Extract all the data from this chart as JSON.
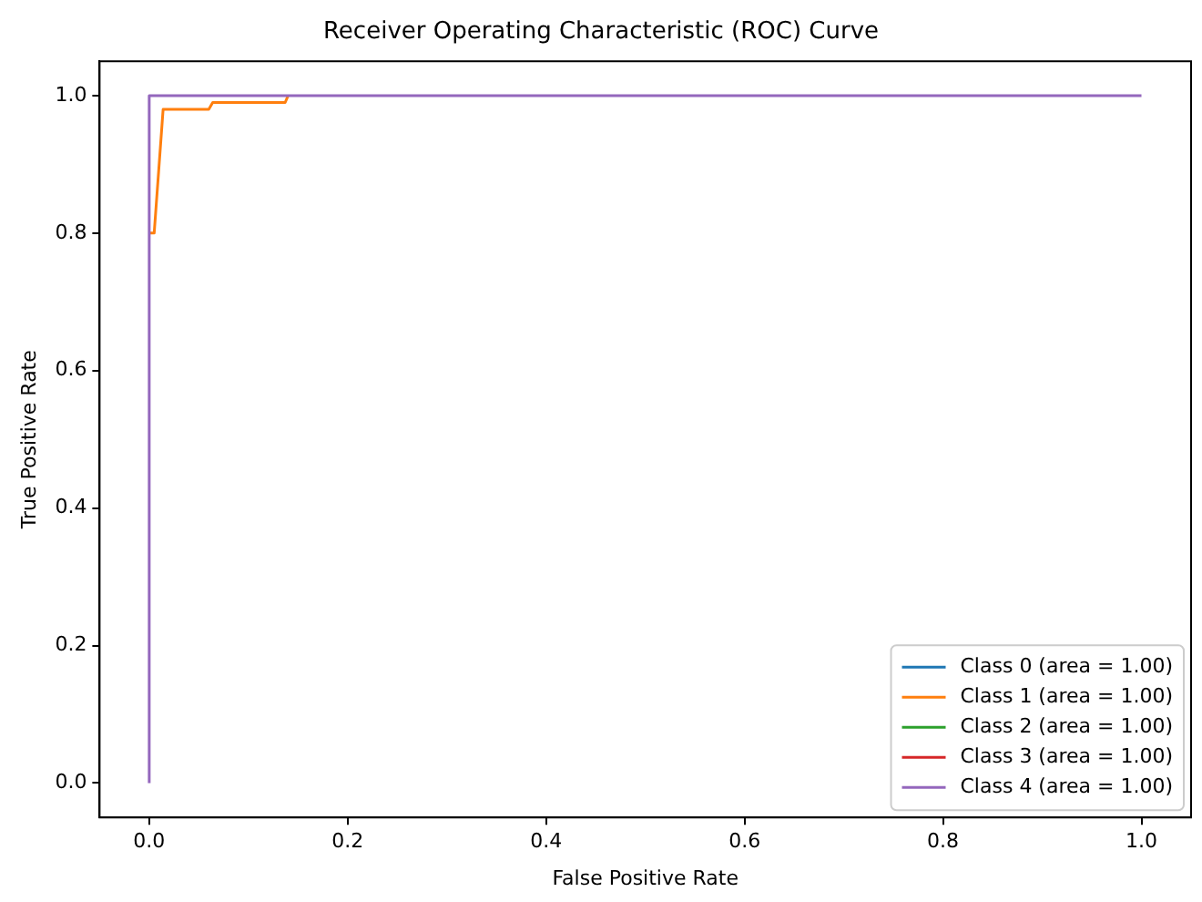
{
  "chart_data": {
    "type": "line",
    "title": "Receiver Operating Characteristic (ROC) Curve",
    "xlabel": "False Positive Rate",
    "ylabel": "True Positive Rate",
    "xlim": [
      -0.05,
      1.05
    ],
    "ylim": [
      -0.05,
      1.05
    ],
    "xticks": [
      {
        "value": 0,
        "label": "0.0"
      },
      0.2,
      0.4,
      0.6,
      0.8,
      {
        "value": 1,
        "label": "1.0"
      }
    ],
    "yticks": [
      {
        "value": 0,
        "label": "0.0"
      },
      0.2,
      0.4,
      0.6,
      0.8,
      {
        "value": 1,
        "label": "1.0"
      }
    ],
    "series": [
      {
        "name": "Class 0 (area = 1.00)",
        "color": "#1f77b4"
      },
      {
        "name": "Class 1 (area = 1.00)",
        "color": "#ff7f0e",
        "x": [
          0.001,
          0.005,
          0.014,
          0.06,
          0.064,
          0.137,
          0.14
        ],
        "values": [
          0.8,
          0.8,
          0.98,
          0.98,
          0.99,
          0.99,
          1
        ]
      },
      {
        "name": "Class 2 (area = 1.00)",
        "color": "#2ca02c"
      },
      {
        "name": "Class 3 (area = 1.00)",
        "color": "#d62728"
      },
      {
        "name": "Class 4 (area = 1.00)",
        "color": "#9467bd",
        "x": [
          0,
          0,
          1
        ],
        "values": [
          0,
          1,
          1
        ]
      }
    ],
    "grid": false,
    "legend": "bottom right",
    "marker": "none",
    "line_style": "solid"
  }
}
